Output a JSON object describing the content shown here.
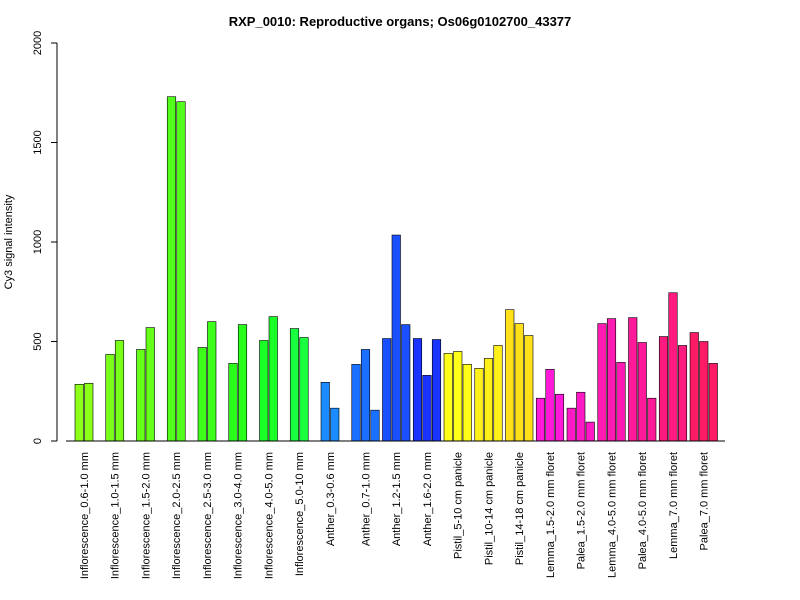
{
  "chart_data": {
    "type": "bar",
    "title": "RXP_0010: Reproductive organs; Os06g0102700_43377",
    "xlabel": "",
    "ylabel": "Cy3 signal intensity",
    "ylim": [
      0,
      2000
    ],
    "yticks": [
      0,
      500,
      1000,
      1500,
      2000
    ],
    "grid": false,
    "legend": "none",
    "groups": [
      {
        "label": "Inflorescence_0.6-1.0 mm",
        "color": "#8cff1a",
        "values": [
          285,
          290
        ]
      },
      {
        "label": "Inflorescence_1.0-1.5 mm",
        "color": "#7aff1a",
        "values": [
          435,
          505
        ]
      },
      {
        "label": "Inflorescence_1.5-2.0 mm",
        "color": "#66ff1a",
        "values": [
          460,
          570
        ]
      },
      {
        "label": "Inflorescence_2.0-2.5 mm",
        "color": "#52ff1a",
        "values": [
          1730,
          1705
        ]
      },
      {
        "label": "Inflorescence_2.5-3.0 mm",
        "color": "#3dff1a",
        "values": [
          470,
          600
        ]
      },
      {
        "label": "Inflorescence_3.0-4.0 mm",
        "color": "#29ff1a",
        "values": [
          390,
          585
        ]
      },
      {
        "label": "Inflorescence_4.0-5.0 mm",
        "color": "#1aff26",
        "values": [
          505,
          625
        ]
      },
      {
        "label": "Inflorescence_5.0-10 mm",
        "color": "#1aff40",
        "values": [
          565,
          520
        ]
      },
      {
        "label": "Anther_0.3-0.6 mm",
        "color": "#1a8cff",
        "values": [
          295,
          165
        ]
      },
      {
        "label": "Anther_0.7-1.0 mm",
        "color": "#1a70ff",
        "values": [
          385,
          460,
          155
        ]
      },
      {
        "label": "Anther_1.2-1.5 mm",
        "color": "#1a50ff",
        "values": [
          515,
          1035,
          585
        ]
      },
      {
        "label": "Anther_1.6-2.0 mm",
        "color": "#1a33ff",
        "values": [
          515,
          330,
          510
        ]
      },
      {
        "label": "Pistil_5-10 cm panicle",
        "color": "#ffff1a",
        "values": [
          440,
          450,
          385
        ]
      },
      {
        "label": "Pistil_10-14 cm panicle",
        "color": "#fff01a",
        "values": [
          365,
          415,
          480
        ]
      },
      {
        "label": "Pistil_14-18 cm panicle",
        "color": "#ffe01a",
        "values": [
          660,
          590,
          530
        ]
      },
      {
        "label": "Lemma_1.5-2.0 mm floret",
        "color": "#ff1ad9",
        "values": [
          215,
          360,
          235
        ]
      },
      {
        "label": "Palea_1.5-2.0 mm floret",
        "color": "#ff1ac6",
        "values": [
          165,
          245,
          95
        ]
      },
      {
        "label": "Lemma_4.0-5.0 mm floret",
        "color": "#ff1ab3",
        "values": [
          590,
          615,
          395
        ]
      },
      {
        "label": "Palea_4.0-5.0 mm floret",
        "color": "#ff1a99",
        "values": [
          620,
          495,
          215
        ]
      },
      {
        "label": "Lemma_7.0 mm floret",
        "color": "#ff1a80",
        "values": [
          525,
          745,
          480
        ]
      },
      {
        "label": "Palea_7.0 mm floret",
        "color": "#ff1a66",
        "values": [
          545,
          500,
          390
        ]
      }
    ]
  }
}
